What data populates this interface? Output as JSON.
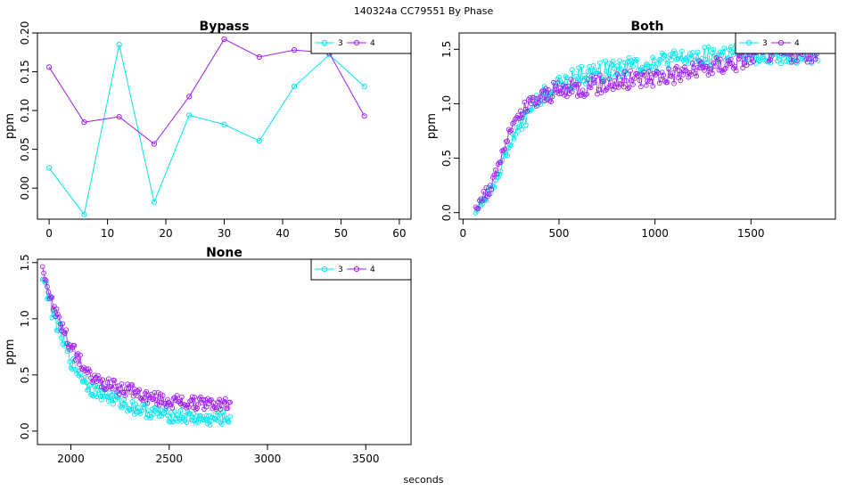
{
  "figure": {
    "title": "140324a    CC79551   By Phase",
    "xlabel": "seconds"
  },
  "colors": {
    "3": "#00e5ee",
    "4": "#a020f0"
  },
  "chart_data": [
    {
      "type": "line",
      "title": "Bypass",
      "ylabel": "ppm",
      "xlim": [
        -2,
        62
      ],
      "ylim": [
        -0.04,
        0.2
      ],
      "xticks": [
        0,
        10,
        20,
        30,
        40,
        50,
        60
      ],
      "yticks": [
        "0.00",
        "0.05",
        "0.10",
        "0.15",
        "0.20"
      ],
      "legend": [
        "3",
        "4"
      ],
      "legend_position": "top-right",
      "series": [
        {
          "name": "3",
          "x": [
            0,
            6,
            12,
            18,
            24,
            30,
            36,
            42,
            48,
            54
          ],
          "y": [
            0.026,
            -0.034,
            0.185,
            -0.018,
            0.094,
            0.082,
            0.061,
            0.131,
            0.172,
            0.131
          ]
        },
        {
          "name": "4",
          "x": [
            0,
            6,
            12,
            18,
            24,
            30,
            36,
            42,
            48,
            54
          ],
          "y": [
            0.156,
            0.085,
            0.092,
            0.057,
            0.118,
            0.192,
            0.169,
            0.178,
            0.174,
            0.093
          ]
        }
      ]
    },
    {
      "type": "line",
      "title": "Both",
      "ylabel": "ppm",
      "xlim": [
        -20,
        1940
      ],
      "ylim": [
        -0.06,
        1.65
      ],
      "xticks": [
        0,
        500,
        1000,
        1500
      ],
      "yticks": [
        "0.0",
        "0.5",
        "1.0",
        "1.5"
      ],
      "legend": [
        "3",
        "4"
      ],
      "legend_position": "top-right",
      "x_range": [
        66,
        1850
      ],
      "n_points": 260,
      "series": [
        {
          "name": "3",
          "x": [
            66,
            150,
            250,
            350,
            450,
            600,
            800,
            1000,
            1200,
            1400,
            1600,
            1850
          ],
          "y": [
            0.02,
            0.22,
            0.65,
            0.95,
            1.12,
            1.25,
            1.33,
            1.38,
            1.42,
            1.46,
            1.45,
            1.45
          ]
        },
        {
          "name": "4",
          "x": [
            66,
            150,
            250,
            350,
            450,
            600,
            800,
            1000,
            1200,
            1400,
            1600,
            1850
          ],
          "y": [
            0.05,
            0.25,
            0.78,
            1.0,
            1.1,
            1.15,
            1.2,
            1.25,
            1.3,
            1.38,
            1.48,
            1.45
          ]
        }
      ]
    },
    {
      "type": "line",
      "title": "None",
      "ylabel": "ppm",
      "xlim": [
        1830,
        3730
      ],
      "ylim": [
        -0.12,
        1.53
      ],
      "xticks": [
        2000,
        2500,
        3000,
        3500
      ],
      "yticks": [
        "0.0",
        "0.5",
        "1.0",
        "1.5"
      ],
      "legend": [
        "3",
        "4"
      ],
      "legend_position": "top-right",
      "x_range": [
        1856,
        2810
      ],
      "n_points": 160,
      "series": [
        {
          "name": "3",
          "x": [
            1856,
            1900,
            1950,
            2000,
            2100,
            2200,
            2300,
            2400,
            2500,
            2600,
            2700,
            2810
          ],
          "y": [
            1.4,
            1.1,
            0.85,
            0.62,
            0.38,
            0.3,
            0.22,
            0.17,
            0.14,
            0.12,
            0.1,
            0.12
          ]
        },
        {
          "name": "4",
          "x": [
            1856,
            1900,
            1950,
            2000,
            2100,
            2200,
            2300,
            2400,
            2500,
            2600,
            2700,
            2810
          ],
          "y": [
            1.48,
            1.15,
            0.95,
            0.75,
            0.48,
            0.4,
            0.36,
            0.3,
            0.27,
            0.25,
            0.24,
            0.24
          ]
        }
      ]
    }
  ]
}
